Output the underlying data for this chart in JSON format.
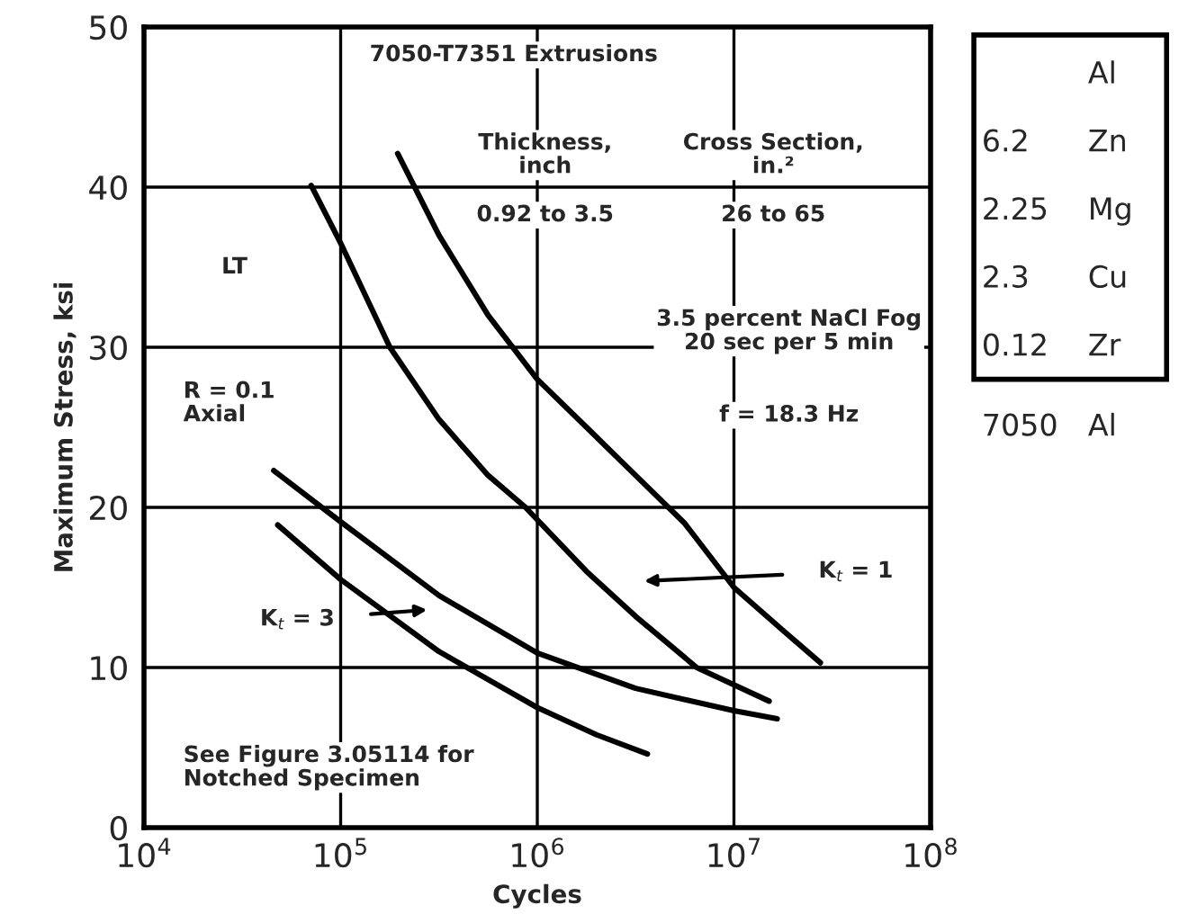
{
  "chart_data": {
    "type": "line",
    "xlabel": "Cycles",
    "ylabel": "Maximum Stress, ksi",
    "log": "x",
    "xlim": [
      10000,
      100000000
    ],
    "ylim": [
      0,
      50
    ],
    "xticks": [
      {
        "value": 10000,
        "label": "10$^{4}$"
      },
      {
        "value": 100000,
        "label": "10$^{5}$"
      },
      {
        "value": 1000000,
        "label": "10$^{6}$"
      },
      {
        "value": 10000000,
        "label": "10$^{7}$"
      },
      {
        "value": 100000000,
        "label": "10$^{8}$"
      }
    ],
    "yticks": [
      0,
      10,
      20,
      30,
      40,
      50
    ],
    "grid": true,
    "marker": "none",
    "line_style": "solid",
    "series": [
      {
        "color": "#000000",
        "x": [
          195000,
          316000,
          562000,
          1000000,
          1780000,
          3160000,
          5620000,
          10000000,
          17800000,
          27500000
        ],
        "values": [
          42.1,
          37,
          32,
          28,
          25,
          22,
          19,
          15,
          12.3,
          10.3
        ]
      },
      {
        "color": "#000000",
        "x": [
          70800,
          100000,
          178000,
          316000,
          562000,
          871000,
          1780000,
          3160000,
          6460000,
          15100000
        ],
        "values": [
          40.1,
          36.5,
          30,
          25.5,
          22,
          20,
          16,
          13.2,
          10,
          7.9
        ]
      },
      {
        "color": "#000000",
        "x": [
          45700,
          100000,
          316000,
          1000000,
          3160000,
          10000000,
          16600000
        ],
        "values": [
          22.3,
          19.1,
          14.5,
          10.9,
          8.7,
          7.3,
          6.8
        ]
      },
      {
        "color": "#000000",
        "x": [
          47900,
          100000,
          316000,
          1000000,
          2000000,
          3630000
        ],
        "values": [
          18.9,
          15.5,
          11,
          7.5,
          5.8,
          4.6
        ]
      }
    ],
    "annotations": [
      "K$_{t}$ = 1",
      "K$_{t}$ = 3",
      "7050-T7351 Extrusions",
      "Thickness,\ninch",
      "Cross Section,\nin.²",
      "0.92 to 3.5",
      "26 to 65",
      "LT",
      "3.5 percent NaCl Fog\n20 sec per 5 min",
      "f = 18.3 Hz",
      "R = 0.1\nAxial",
      "See Figure 3.05114 for\nNotched Specimen",
      "Al",
      "6.2  Zn",
      "2.25  Mg",
      "2.3  Cu",
      "0.12  Zr",
      "7050  Al"
    ]
  }
}
